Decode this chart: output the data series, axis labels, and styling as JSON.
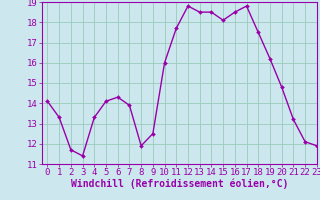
{
  "x": [
    0,
    1,
    2,
    3,
    4,
    5,
    6,
    7,
    8,
    9,
    10,
    11,
    12,
    13,
    14,
    15,
    16,
    17,
    18,
    19,
    20,
    21,
    22,
    23
  ],
  "y": [
    14.1,
    13.3,
    11.7,
    11.4,
    13.3,
    14.1,
    14.3,
    13.9,
    11.9,
    12.5,
    16.0,
    17.7,
    18.8,
    18.5,
    18.5,
    18.1,
    18.5,
    18.8,
    17.5,
    16.2,
    14.8,
    13.2,
    12.1,
    11.9
  ],
  "xlabel": "Windchill (Refroidissement éolien,°C)",
  "ylim": [
    11,
    19
  ],
  "xlim": [
    -0.5,
    23
  ],
  "yticks": [
    11,
    12,
    13,
    14,
    15,
    16,
    17,
    18,
    19
  ],
  "xticks": [
    0,
    1,
    2,
    3,
    4,
    5,
    6,
    7,
    8,
    9,
    10,
    11,
    12,
    13,
    14,
    15,
    16,
    17,
    18,
    19,
    20,
    21,
    22,
    23
  ],
  "line_color": "#9900aa",
  "bg_color": "#cce8ee",
  "grid_color": "#99ccbb",
  "xlabel_fontsize": 7,
  "tick_fontsize": 6.5,
  "marker_size": 2.0,
  "line_width": 1.0
}
